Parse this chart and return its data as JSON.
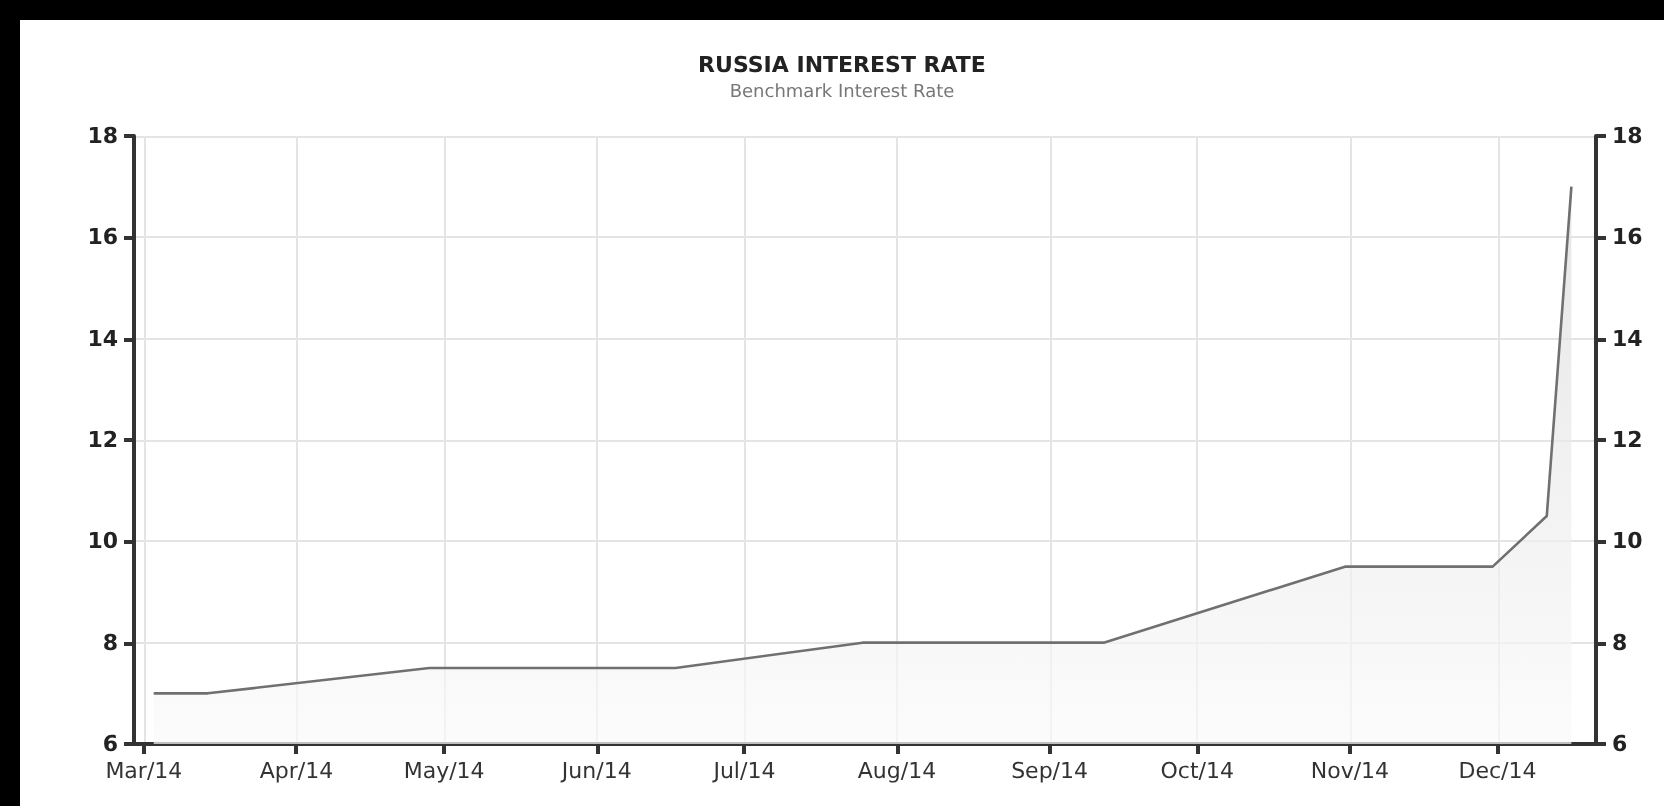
{
  "chart_data": {
    "type": "area",
    "title": "RUSSIA INTEREST RATE",
    "subtitle": "Benchmark Interest Rate",
    "x": [
      "2014-03-03",
      "2014-03-14",
      "2014-04-28",
      "2014-06-17",
      "2014-07-25",
      "2014-09-12",
      "2014-10-31",
      "2014-11-30",
      "2014-12-11",
      "2014-12-16"
    ],
    "series": [
      {
        "color": "#707070",
        "values": [
          7.0,
          7.0,
          7.5,
          7.5,
          8.0,
          8.0,
          9.5,
          9.5,
          10.5,
          17.0
        ]
      }
    ],
    "xlim": [
      "2014-02-27",
      "2014-12-21"
    ],
    "xticks": [
      {
        "value": "2014-03-01",
        "label": "Mar/14"
      },
      {
        "value": "2014-04-01",
        "label": "Apr/14"
      },
      {
        "value": "2014-05-01",
        "label": "May/14"
      },
      {
        "value": "2014-06-01",
        "label": "Jun/14"
      },
      {
        "value": "2014-07-01",
        "label": "Jul/14"
      },
      {
        "value": "2014-08-01",
        "label": "Aug/14"
      },
      {
        "value": "2014-09-01",
        "label": "Sep/14"
      },
      {
        "value": "2014-10-01",
        "label": "Oct/14"
      },
      {
        "value": "2014-11-01",
        "label": "Nov/14"
      },
      {
        "value": "2014-12-01",
        "label": "Dec/14"
      }
    ],
    "ylim": [
      6,
      18
    ],
    "yticks": [
      6,
      8,
      10,
      12,
      14,
      16,
      18
    ],
    "y2lim": [
      6,
      18
    ],
    "y2ticks": [
      6,
      8,
      10,
      12,
      14,
      16,
      18
    ],
    "grid": true,
    "marker": "none"
  }
}
